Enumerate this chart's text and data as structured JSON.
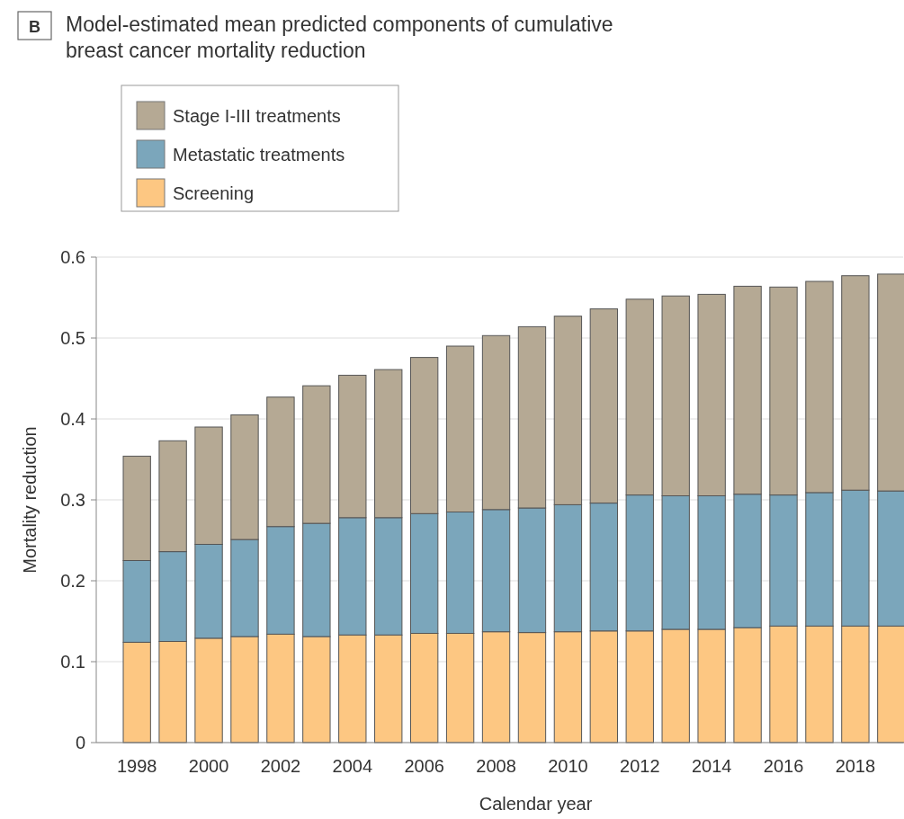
{
  "chart_data": {
    "type": "bar",
    "title": "Model-estimated mean predicted components of cumulative breast cancer mortality reduction",
    "annotations": [
      "B"
    ],
    "xlabel": "Calendar year",
    "ylabel": "Mortality reduction",
    "categories": [
      "1998",
      null,
      "2000",
      null,
      "2002",
      null,
      "2004",
      null,
      "2006",
      null,
      "2008",
      null,
      "2010",
      null,
      "2012",
      null,
      "2014",
      null,
      "2016",
      null,
      "2018",
      null
    ],
    "stacked": true,
    "series": [
      {
        "name": "Screening",
        "color": "#fdc782",
        "values": [
          0.124,
          0.125,
          0.129,
          0.131,
          0.134,
          0.131,
          0.133,
          0.133,
          0.135,
          0.135,
          0.137,
          0.136,
          0.137,
          0.138,
          0.138,
          0.14,
          0.14,
          0.142,
          0.144,
          0.144,
          0.144,
          0.144
        ]
      },
      {
        "name": "Metastatic treatments",
        "color": "#7ba6bb",
        "values": [
          0.101,
          0.111,
          0.116,
          0.12,
          0.133,
          0.14,
          0.145,
          0.145,
          0.148,
          0.15,
          0.151,
          0.154,
          0.157,
          0.158,
          0.168,
          0.165,
          0.165,
          0.165,
          0.162,
          0.165,
          0.168,
          0.167
        ]
      },
      {
        "name": "Stage I-III treatments",
        "color": "#b5a994",
        "values": [
          0.129,
          0.137,
          0.145,
          0.154,
          0.16,
          0.17,
          0.176,
          0.183,
          0.193,
          0.205,
          0.215,
          0.224,
          0.233,
          0.24,
          0.242,
          0.247,
          0.249,
          0.257,
          0.257,
          0.261,
          0.265,
          0.268
        ]
      }
    ],
    "ylim": [
      0,
      0.6
    ],
    "yticks": [
      0,
      0.1,
      0.2,
      0.3,
      0.4,
      0.5,
      0.6
    ],
    "grid": "y",
    "legend": "top left"
  }
}
